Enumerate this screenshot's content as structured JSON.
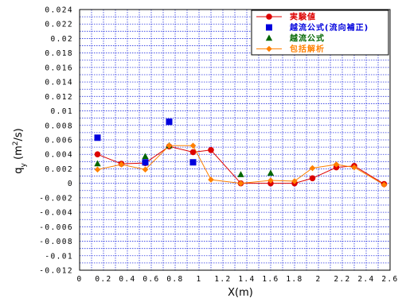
{
  "chart_data": {
    "type": "scatter",
    "xlabel": "X(m)",
    "ylabel_main": "q",
    "ylabel_sub": "y",
    "ylabel_unit_pre": " (m",
    "ylabel_unit_sup": "2",
    "ylabel_unit_post": "/s)",
    "xlim": [
      0,
      2.6
    ],
    "ylim": [
      -0.012,
      0.024
    ],
    "x_ticks": [
      "0",
      "0.2",
      "0.4",
      "0.6",
      "0.8",
      "1",
      "1.2",
      "1.4",
      "1.6",
      "1.8",
      "2",
      "2.2",
      "2.4",
      "2.6"
    ],
    "y_ticks": [
      "0.024",
      "0.022",
      "0.02",
      "0.018",
      "0.016",
      "0.014",
      "0.012",
      "0.01",
      "0.008",
      "0.006",
      "0.004",
      "0.002",
      "0",
      "-0.002",
      "-0.004",
      "-0.006",
      "-0.008",
      "-0.01",
      "-0.012"
    ],
    "grid": true,
    "legend_position": "top-right",
    "series": [
      {
        "name": "実験値",
        "color": "#dd0000",
        "marker": "circle",
        "line": true,
        "x": [
          0.15,
          0.35,
          0.55,
          0.75,
          0.95,
          1.1,
          1.35,
          1.6,
          1.8,
          1.95,
          2.15,
          2.3,
          2.55
        ],
        "y": [
          0.004,
          0.0027,
          0.0028,
          0.0051,
          0.0043,
          0.0046,
          0.0,
          0.0,
          0.0,
          0.0007,
          0.0022,
          0.0024,
          -0.0001
        ]
      },
      {
        "name": "越流公式(流向補正)",
        "color": "#0000dd",
        "marker": "square",
        "line": false,
        "x": [
          0.15,
          0.55,
          0.75,
          0.95
        ],
        "y": [
          0.0063,
          0.0029,
          0.0085,
          0.0029
        ]
      },
      {
        "name": "越流公式",
        "color": "#006600",
        "marker": "triangle",
        "line": false,
        "x": [
          0.15,
          0.55,
          0.75,
          1.35,
          1.6
        ],
        "y": [
          0.0027,
          0.0037,
          0.0052,
          0.0012,
          0.0014
        ]
      },
      {
        "name": "包括解析",
        "color": "#ff8000",
        "marker": "diamond",
        "line": true,
        "x": [
          0.15,
          0.35,
          0.55,
          0.75,
          0.95,
          1.1,
          1.35,
          1.6,
          1.8,
          1.95,
          2.15,
          2.3,
          2.55
        ],
        "y": [
          0.0019,
          0.0026,
          0.0019,
          0.0052,
          0.0052,
          0.0005,
          0.0,
          0.0004,
          0.0003,
          0.0021,
          0.0026,
          0.0022,
          -0.0002
        ]
      }
    ]
  }
}
